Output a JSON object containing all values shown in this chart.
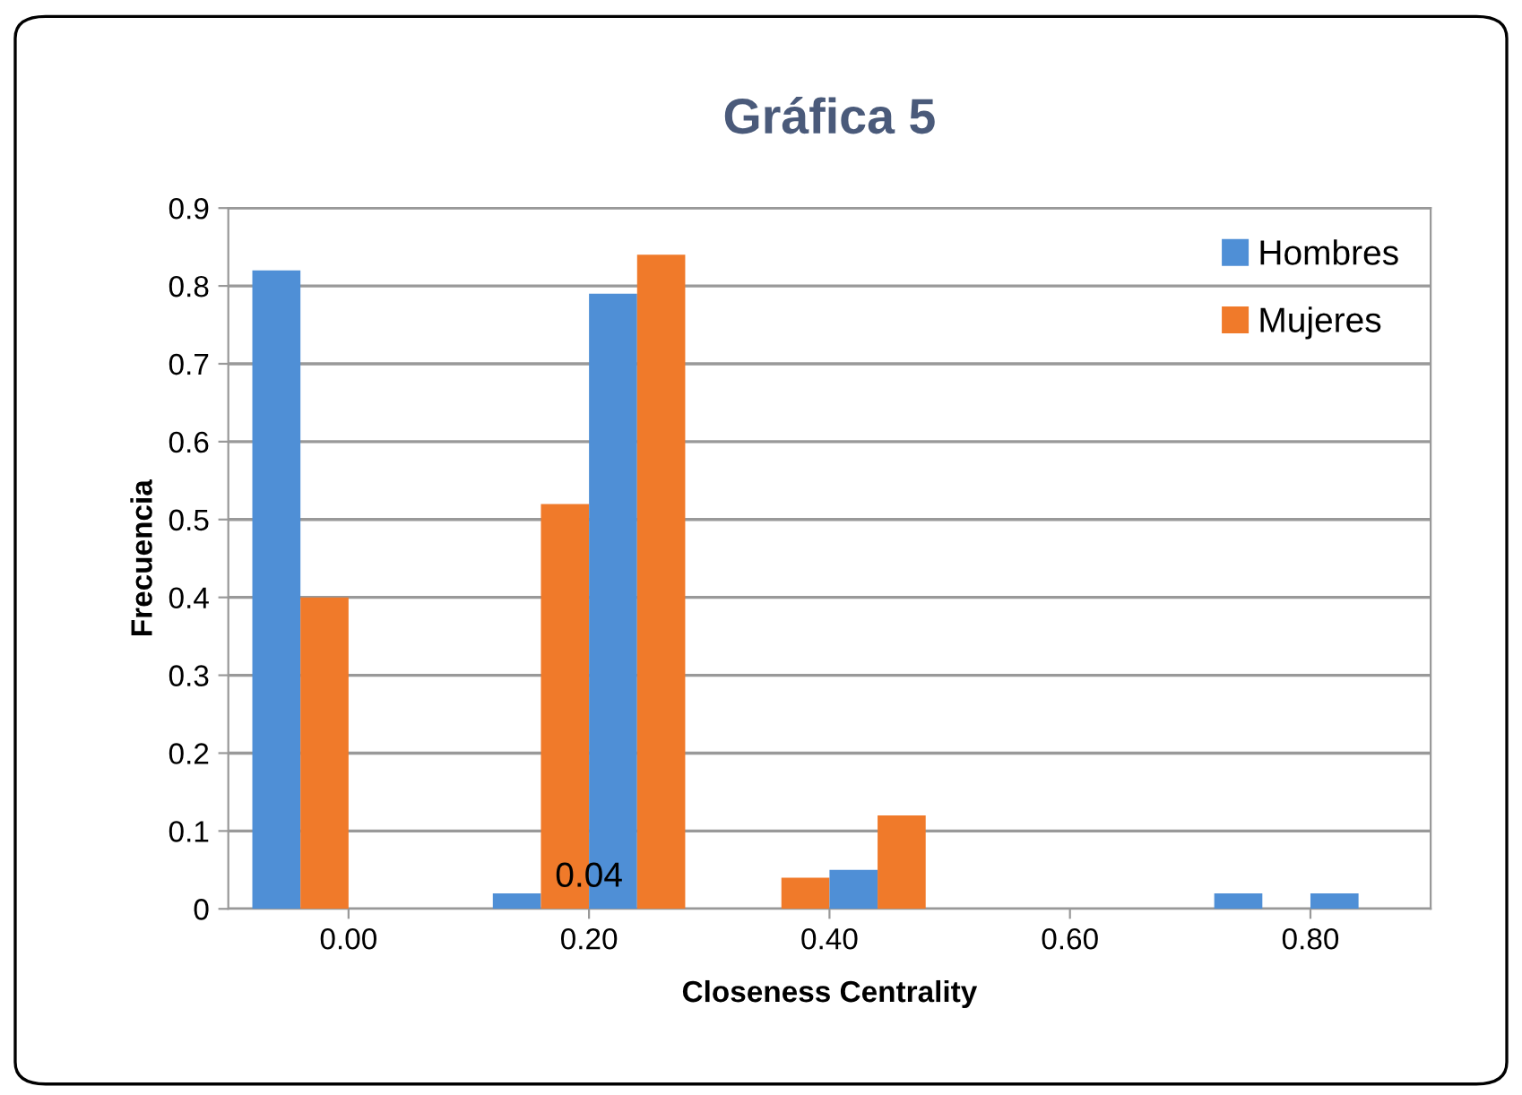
{
  "chart_data": {
    "type": "bar",
    "title": "Gráfica 5",
    "xlabel": "Closeness Centrality",
    "ylabel": "Frecuencia",
    "categories": [
      "0.00",
      "0.20",
      "0.40",
      "0.60",
      "0.80"
    ],
    "series": [
      {
        "name": "Hombres",
        "color": "#4f8fd6",
        "values": [
          0.82,
          0.02,
          0.0,
          0.0,
          0.02
        ]
      },
      {
        "name": "Mujeres",
        "color": "#f07a2a",
        "values": [
          0.4,
          0.52,
          0.04,
          0.0,
          0.0
        ]
      },
      {
        "color": "#4f8fd6",
        "values": [
          0.0,
          0.79,
          0.05,
          0.0,
          0.02
        ]
      },
      {
        "color": "#f07a2a",
        "values": [
          0.0,
          0.84,
          0.12,
          0.0,
          0.0
        ]
      }
    ],
    "annotations": [
      {
        "text": "0.04",
        "x": "0.20",
        "y": 0.04
      }
    ],
    "ylim": [
      0,
      0.9
    ],
    "yticks": [
      0,
      0.1,
      0.2,
      0.3,
      0.4,
      0.5,
      0.6,
      0.7,
      0.8,
      0.9
    ],
    "grid": "y",
    "legend": "top right"
  }
}
